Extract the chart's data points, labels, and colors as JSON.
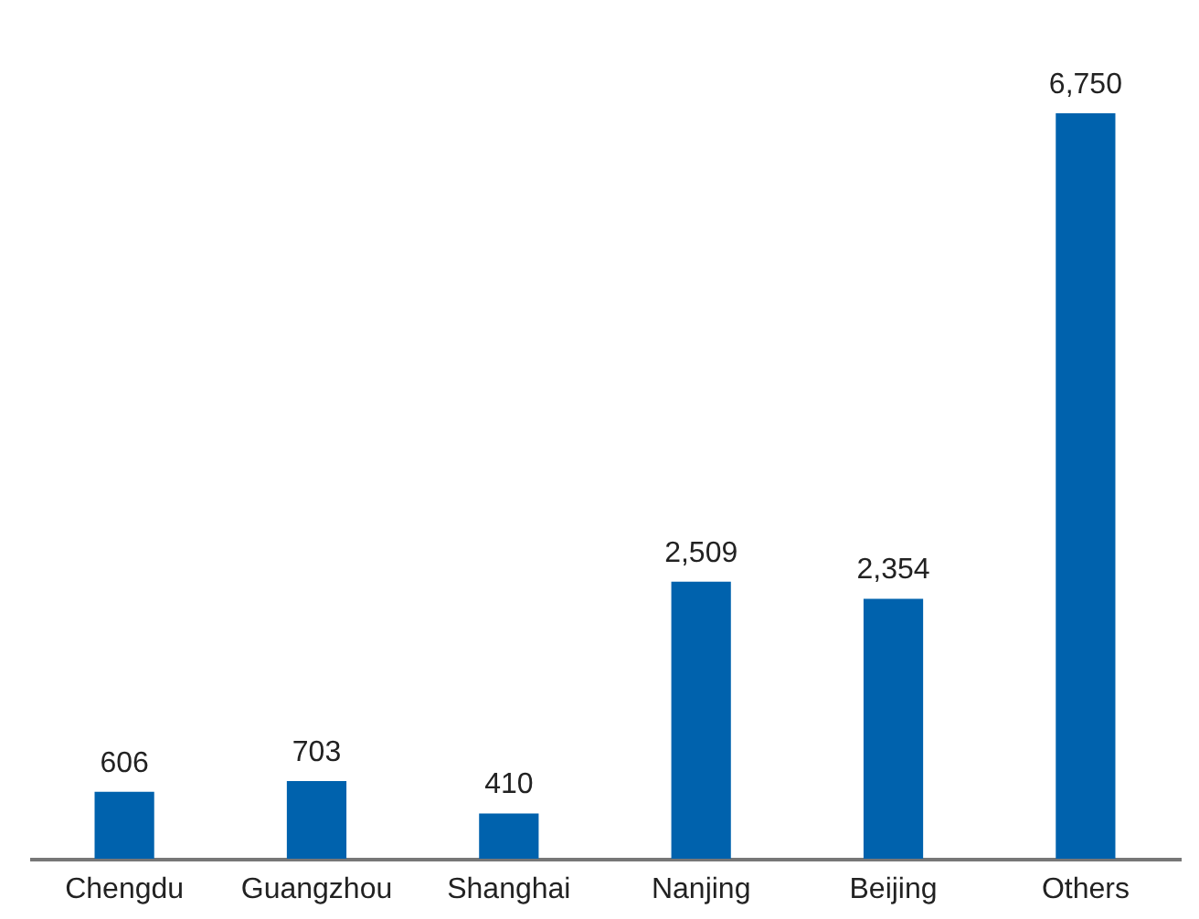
{
  "chart_data": {
    "type": "bar",
    "categories": [
      "Chengdu",
      "Guangzhou",
      "Shanghai",
      "Nanjing",
      "Beijing",
      "Others"
    ],
    "values": [
      606,
      703,
      410,
      2509,
      2354,
      6750
    ],
    "value_labels": [
      "606",
      "703",
      "410",
      "2,509",
      "2,354",
      "6,750"
    ],
    "color": "#0062ad"
  }
}
